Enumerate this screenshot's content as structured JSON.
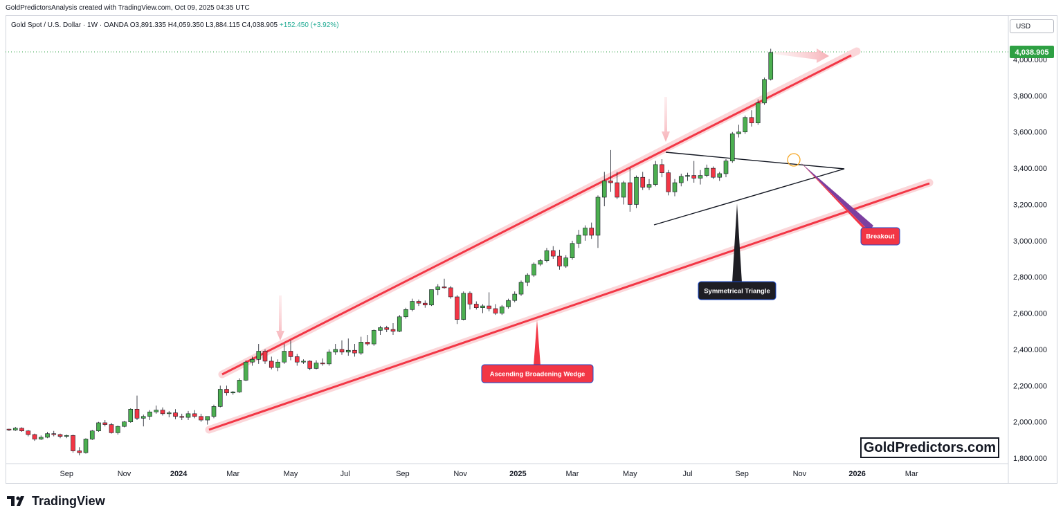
{
  "header": {
    "credit": "GoldPredictorsAnalysis created with TradingView.com, Oct 09, 2025 04:35 UTC"
  },
  "legend": {
    "symbol": "Gold Spot / U.S. Dollar · 1W · OANDA",
    "o_label": "O",
    "o_value": "3,891.335",
    "h_label": "H",
    "h_value": "4,059.350",
    "l_label": "L",
    "l_value": "3,884.115",
    "c_label": "C",
    "c_value": "4,038.905",
    "change": "+152.450 (+3.92%)"
  },
  "currency": "USD",
  "brand": "GoldPredictors.com",
  "footer_logo": "TradingView",
  "colors": {
    "up": "#4caf50",
    "down": "#f23645",
    "wedge": "#f23645",
    "wedge_glow": "#fbd6d9",
    "price_tag": "#2ea043",
    "triangle_label": "#1e1e24",
    "breakout_pointer": "#7b3fa0"
  },
  "chart_data": {
    "type": "candlestick",
    "title": "Gold Spot / U.S. Dollar · 1W · OANDA",
    "last_price": 4038.905,
    "last_price_label": "4,038.905",
    "ylim": [
      1760,
      4120
    ],
    "y_ticks": [
      1800,
      2000,
      2200,
      2400,
      2600,
      2800,
      3000,
      3200,
      3400,
      3600,
      3800,
      4000
    ],
    "y_tick_labels": [
      "1,800.000",
      "2,000.000",
      "2,200.000",
      "2,400.000",
      "2,600.000",
      "2,800.000",
      "3,000.000",
      "3,200.000",
      "3,400.000",
      "3,600.000",
      "3,800.000",
      "4,000.000"
    ],
    "x_ticks": [
      {
        "label": "Sep",
        "bar": 9,
        "bold": false
      },
      {
        "label": "Nov",
        "bar": 18,
        "bold": false
      },
      {
        "label": "2024",
        "bar": 26.5,
        "bold": true
      },
      {
        "label": "Mar",
        "bar": 35,
        "bold": false
      },
      {
        "label": "May",
        "bar": 44,
        "bold": false
      },
      {
        "label": "Jul",
        "bar": 52.5,
        "bold": false
      },
      {
        "label": "Sep",
        "bar": 61.5,
        "bold": false
      },
      {
        "label": "Nov",
        "bar": 70.5,
        "bold": false
      },
      {
        "label": "2025",
        "bar": 79.5,
        "bold": true
      },
      {
        "label": "Mar",
        "bar": 88,
        "bold": false
      },
      {
        "label": "May",
        "bar": 97,
        "bold": false
      },
      {
        "label": "Jul",
        "bar": 106,
        "bold": false
      },
      {
        "label": "Sep",
        "bar": 114.5,
        "bold": false
      },
      {
        "label": "Nov",
        "bar": 123.5,
        "bold": false
      },
      {
        "label": "2026",
        "bar": 132.5,
        "bold": true
      },
      {
        "label": "Mar",
        "bar": 141,
        "bold": false
      }
    ],
    "candles": [
      [
        1960,
        1962,
        1950,
        1955
      ],
      [
        1955,
        1972,
        1950,
        1965
      ],
      [
        1965,
        1970,
        1945,
        1950
      ],
      [
        1950,
        1955,
        1920,
        1930
      ],
      [
        1930,
        1935,
        1895,
        1905
      ],
      [
        1905,
        1925,
        1900,
        1915
      ],
      [
        1915,
        1945,
        1910,
        1935
      ],
      [
        1935,
        1950,
        1920,
        1930
      ],
      [
        1930,
        1935,
        1910,
        1920
      ],
      [
        1920,
        1930,
        1910,
        1925
      ],
      [
        1925,
        1930,
        1830,
        1840
      ],
      [
        1840,
        1860,
        1815,
        1830
      ],
      [
        1830,
        1910,
        1825,
        1905
      ],
      [
        1905,
        1955,
        1900,
        1950
      ],
      [
        1950,
        2000,
        1945,
        1995
      ],
      [
        1995,
        2010,
        1975,
        1985
      ],
      [
        1985,
        1995,
        1935,
        1940
      ],
      [
        1940,
        1980,
        1930,
        1975
      ],
      [
        1975,
        2005,
        1970,
        2000
      ],
      [
        2000,
        2075,
        1995,
        2070
      ],
      [
        2070,
        2145,
        2010,
        2020
      ],
      [
        2020,
        2040,
        1975,
        2030
      ],
      [
        2030,
        2065,
        2010,
        2055
      ],
      [
        2055,
        2090,
        2045,
        2065
      ],
      [
        2065,
        2080,
        2035,
        2045
      ],
      [
        2045,
        2060,
        2025,
        2050
      ],
      [
        2050,
        2070,
        2015,
        2030
      ],
      [
        2030,
        2045,
        2010,
        2025
      ],
      [
        2025,
        2060,
        2010,
        2045
      ],
      [
        2045,
        2065,
        2020,
        2030
      ],
      [
        2030,
        2045,
        2000,
        2010
      ],
      [
        2010,
        2030,
        1985,
        2030
      ],
      [
        2030,
        2095,
        2020,
        2085
      ],
      [
        2085,
        2200,
        2080,
        2180
      ],
      [
        2180,
        2200,
        2145,
        2160
      ],
      [
        2160,
        2170,
        2150,
        2165
      ],
      [
        2165,
        2240,
        2160,
        2230
      ],
      [
        2230,
        2340,
        2225,
        2330
      ],
      [
        2330,
        2360,
        2310,
        2345
      ],
      [
        2345,
        2430,
        2320,
        2390
      ],
      [
        2390,
        2400,
        2320,
        2335
      ],
      [
        2335,
        2360,
        2290,
        2300
      ],
      [
        2300,
        2345,
        2280,
        2330
      ],
      [
        2330,
        2430,
        2320,
        2390
      ],
      [
        2390,
        2450,
        2340,
        2360
      ],
      [
        2360,
        2375,
        2310,
        2330
      ],
      [
        2330,
        2345,
        2320,
        2335
      ],
      [
        2335,
        2340,
        2285,
        2295
      ],
      [
        2295,
        2340,
        2290,
        2325
      ],
      [
        2325,
        2350,
        2310,
        2320
      ],
      [
        2320,
        2400,
        2310,
        2385
      ],
      [
        2385,
        2430,
        2370,
        2400
      ],
      [
        2400,
        2450,
        2370,
        2385
      ],
      [
        2385,
        2460,
        2365,
        2395
      ],
      [
        2395,
        2430,
        2360,
        2380
      ],
      [
        2380,
        2470,
        2370,
        2440
      ],
      [
        2440,
        2480,
        2420,
        2430
      ],
      [
        2430,
        2510,
        2420,
        2505
      ],
      [
        2505,
        2530,
        2480,
        2520
      ],
      [
        2520,
        2530,
        2495,
        2510
      ],
      [
        2510,
        2545,
        2480,
        2500
      ],
      [
        2500,
        2590,
        2495,
        2580
      ],
      [
        2580,
        2630,
        2570,
        2620
      ],
      [
        2620,
        2680,
        2610,
        2665
      ],
      [
        2665,
        2675,
        2640,
        2655
      ],
      [
        2655,
        2670,
        2630,
        2645
      ],
      [
        2645,
        2730,
        2640,
        2730
      ],
      [
        2730,
        2760,
        2700,
        2745
      ],
      [
        2745,
        2790,
        2735,
        2740
      ],
      [
        2740,
        2750,
        2680,
        2690
      ],
      [
        2690,
        2700,
        2540,
        2565
      ],
      [
        2565,
        2720,
        2560,
        2710
      ],
      [
        2710,
        2720,
        2620,
        2650
      ],
      [
        2650,
        2665,
        2620,
        2630
      ],
      [
        2630,
        2650,
        2600,
        2640
      ],
      [
        2640,
        2715,
        2610,
        2625
      ],
      [
        2625,
        2650,
        2590,
        2600
      ],
      [
        2600,
        2645,
        2590,
        2635
      ],
      [
        2635,
        2680,
        2625,
        2670
      ],
      [
        2670,
        2720,
        2660,
        2705
      ],
      [
        2705,
        2780,
        2695,
        2770
      ],
      [
        2770,
        2820,
        2750,
        2810
      ],
      [
        2810,
        2880,
        2800,
        2870
      ],
      [
        2870,
        2900,
        2860,
        2890
      ],
      [
        2890,
        2960,
        2880,
        2945
      ],
      [
        2945,
        2970,
        2900,
        2915
      ],
      [
        2915,
        2950,
        2840,
        2860
      ],
      [
        2860,
        2920,
        2850,
        2905
      ],
      [
        2905,
        3000,
        2895,
        2985
      ],
      [
        2985,
        3060,
        2960,
        3030
      ],
      [
        3030,
        3085,
        3000,
        3070
      ],
      [
        3070,
        3100,
        3010,
        3030
      ],
      [
        3030,
        3250,
        2960,
        3240
      ],
      [
        3240,
        3380,
        3190,
        3330
      ],
      [
        3330,
        3500,
        3270,
        3320
      ],
      [
        3320,
        3380,
        3230,
        3240
      ],
      [
        3240,
        3330,
        3200,
        3320
      ],
      [
        3320,
        3400,
        3160,
        3200
      ],
      [
        3200,
        3360,
        3180,
        3350
      ],
      [
        3350,
        3380,
        3280,
        3295
      ],
      [
        3295,
        3340,
        3280,
        3310
      ],
      [
        3310,
        3440,
        3300,
        3420
      ],
      [
        3420,
        3450,
        3350,
        3375
      ],
      [
        3375,
        3390,
        3250,
        3270
      ],
      [
        3270,
        3340,
        3245,
        3320
      ],
      [
        3320,
        3370,
        3300,
        3355
      ],
      [
        3355,
        3375,
        3330,
        3360
      ],
      [
        3360,
        3440,
        3320,
        3345
      ],
      [
        3345,
        3390,
        3310,
        3360
      ],
      [
        3360,
        3420,
        3350,
        3400
      ],
      [
        3400,
        3410,
        3340,
        3350
      ],
      [
        3350,
        3380,
        3330,
        3370
      ],
      [
        3370,
        3450,
        3350,
        3440
      ],
      [
        3440,
        3600,
        3430,
        3590
      ],
      [
        3590,
        3640,
        3570,
        3600
      ],
      [
        3600,
        3690,
        3590,
        3680
      ],
      [
        3680,
        3720,
        3630,
        3650
      ],
      [
        3650,
        3780,
        3640,
        3760
      ],
      [
        3760,
        3900,
        3750,
        3890
      ],
      [
        3891.335,
        4059.35,
        3884.115,
        4038.905
      ]
    ],
    "annotations": [
      {
        "text": "Ascending Broadening Wedge",
        "type": "label"
      },
      {
        "text": "Symmetrical Triangle",
        "type": "label"
      },
      {
        "text": "Breakout",
        "type": "label"
      }
    ]
  }
}
